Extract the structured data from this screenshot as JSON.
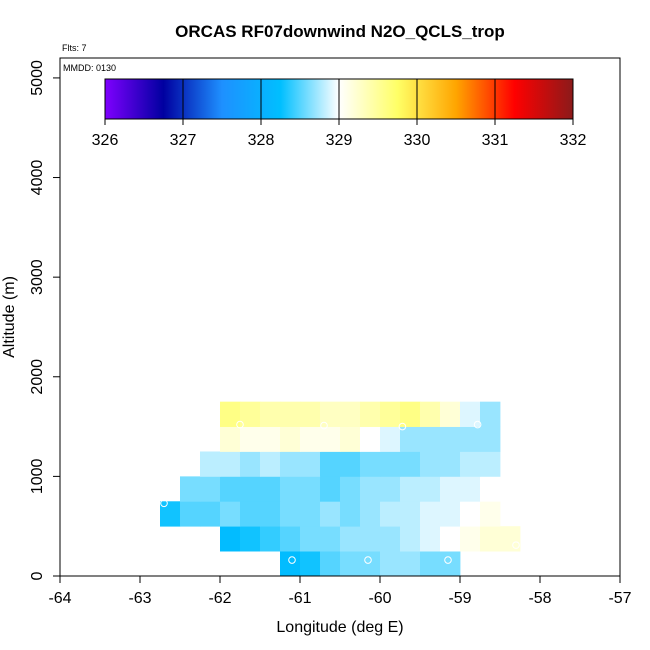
{
  "header": {
    "title": "ORCAS RF07downwind N2O_QCLS_trop",
    "flts": "Flts: 7",
    "mmdd": "MMDD: 0130"
  },
  "chart_data": {
    "type": "heatmap",
    "title": "ORCAS RF07downwind N2O_QCLS_trop",
    "xlabel": "Longitude (deg E)",
    "ylabel": "Altitude (m)",
    "xlim": [
      -64,
      -57
    ],
    "ylim": [
      0,
      5200
    ],
    "xticks": [
      -64,
      -63,
      -62,
      -61,
      -60,
      -59,
      -58,
      -57
    ],
    "yticks": [
      0,
      1000,
      2000,
      3000,
      4000,
      5000
    ],
    "grid": false,
    "colorbar": {
      "min": 326,
      "max": 332,
      "ticks": [
        326,
        327,
        328,
        329,
        330,
        331,
        332
      ],
      "placement": "top-left inside plot",
      "colors": [
        "#7f00ff",
        "#0000a0",
        "#1e90ff",
        "#00bfff",
        "#ffffff",
        "#ffff66",
        "#ffa500",
        "#ff0000",
        "#8b1a1a"
      ]
    },
    "cell_size": {
      "lon": 0.25,
      "alt": 250
    },
    "cells": [
      {
        "lon": -61.125,
        "alt": 125,
        "value": 328.2
      },
      {
        "lon": -60.875,
        "alt": 125,
        "value": 328.3
      },
      {
        "lon": -60.625,
        "alt": 125,
        "value": 328.5
      },
      {
        "lon": -60.375,
        "alt": 125,
        "value": 328.6
      },
      {
        "lon": -60.125,
        "alt": 125,
        "value": 328.6
      },
      {
        "lon": -59.875,
        "alt": 125,
        "value": 328.7
      },
      {
        "lon": -59.625,
        "alt": 125,
        "value": 328.7
      },
      {
        "lon": -59.375,
        "alt": 125,
        "value": 328.6
      },
      {
        "lon": -59.125,
        "alt": 125,
        "value": 328.6
      },
      {
        "lon": -61.875,
        "alt": 375,
        "value": 328.2
      },
      {
        "lon": -61.625,
        "alt": 375,
        "value": 328.3
      },
      {
        "lon": -61.375,
        "alt": 375,
        "value": 328.4
      },
      {
        "lon": -61.125,
        "alt": 375,
        "value": 328.5
      },
      {
        "lon": -60.875,
        "alt": 375,
        "value": 328.6
      },
      {
        "lon": -60.625,
        "alt": 375,
        "value": 328.6
      },
      {
        "lon": -60.375,
        "alt": 375,
        "value": 328.7
      },
      {
        "lon": -60.125,
        "alt": 375,
        "value": 328.7
      },
      {
        "lon": -59.875,
        "alt": 375,
        "value": 328.7
      },
      {
        "lon": -59.625,
        "alt": 375,
        "value": 328.8
      },
      {
        "lon": -59.375,
        "alt": 375,
        "value": 328.9
      },
      {
        "lon": -59.125,
        "alt": 375,
        "value": 329.0
      },
      {
        "lon": -58.875,
        "alt": 375,
        "value": 329.1
      },
      {
        "lon": -58.625,
        "alt": 375,
        "value": 329.2
      },
      {
        "lon": -58.375,
        "alt": 375,
        "value": 329.2
      },
      {
        "lon": -62.625,
        "alt": 625,
        "value": 328.3
      },
      {
        "lon": -62.375,
        "alt": 625,
        "value": 328.5
      },
      {
        "lon": -62.125,
        "alt": 625,
        "value": 328.5
      },
      {
        "lon": -61.875,
        "alt": 625,
        "value": 328.6
      },
      {
        "lon": -61.625,
        "alt": 625,
        "value": 328.5
      },
      {
        "lon": -61.375,
        "alt": 625,
        "value": 328.5
      },
      {
        "lon": -61.125,
        "alt": 625,
        "value": 328.6
      },
      {
        "lon": -60.875,
        "alt": 625,
        "value": 328.6
      },
      {
        "lon": -60.625,
        "alt": 625,
        "value": 328.7
      },
      {
        "lon": -60.375,
        "alt": 625,
        "value": 328.6
      },
      {
        "lon": -60.125,
        "alt": 625,
        "value": 328.7
      },
      {
        "lon": -59.875,
        "alt": 625,
        "value": 328.8
      },
      {
        "lon": -59.625,
        "alt": 625,
        "value": 328.8
      },
      {
        "lon": -59.375,
        "alt": 625,
        "value": 328.9
      },
      {
        "lon": -59.125,
        "alt": 625,
        "value": 328.9
      },
      {
        "lon": -58.875,
        "alt": 625,
        "value": 329.0
      },
      {
        "lon": -58.625,
        "alt": 625,
        "value": 329.1
      },
      {
        "lon": -62.375,
        "alt": 875,
        "value": 328.6
      },
      {
        "lon": -62.125,
        "alt": 875,
        "value": 328.6
      },
      {
        "lon": -61.875,
        "alt": 875,
        "value": 328.5
      },
      {
        "lon": -61.625,
        "alt": 875,
        "value": 328.5
      },
      {
        "lon": -61.375,
        "alt": 875,
        "value": 328.5
      },
      {
        "lon": -61.125,
        "alt": 875,
        "value": 328.6
      },
      {
        "lon": -60.875,
        "alt": 875,
        "value": 328.6
      },
      {
        "lon": -60.625,
        "alt": 875,
        "value": 328.5
      },
      {
        "lon": -60.375,
        "alt": 875,
        "value": 328.6
      },
      {
        "lon": -60.125,
        "alt": 875,
        "value": 328.7
      },
      {
        "lon": -59.875,
        "alt": 875,
        "value": 328.7
      },
      {
        "lon": -59.625,
        "alt": 875,
        "value": 328.8
      },
      {
        "lon": -59.375,
        "alt": 875,
        "value": 328.8
      },
      {
        "lon": -59.125,
        "alt": 875,
        "value": 328.9
      },
      {
        "lon": -58.875,
        "alt": 875,
        "value": 328.9
      },
      {
        "lon": -58.625,
        "alt": 875,
        "value": 329.0
      },
      {
        "lon": -62.125,
        "alt": 1125,
        "value": 328.8
      },
      {
        "lon": -61.875,
        "alt": 1125,
        "value": 328.8
      },
      {
        "lon": -61.625,
        "alt": 1125,
        "value": 328.7
      },
      {
        "lon": -61.375,
        "alt": 1125,
        "value": 328.8
      },
      {
        "lon": -61.125,
        "alt": 1125,
        "value": 328.7
      },
      {
        "lon": -60.875,
        "alt": 1125,
        "value": 328.7
      },
      {
        "lon": -60.625,
        "alt": 1125,
        "value": 328.5
      },
      {
        "lon": -60.375,
        "alt": 1125,
        "value": 328.5
      },
      {
        "lon": -60.125,
        "alt": 1125,
        "value": 328.6
      },
      {
        "lon": -59.875,
        "alt": 1125,
        "value": 328.6
      },
      {
        "lon": -59.625,
        "alt": 1125,
        "value": 328.6
      },
      {
        "lon": -59.375,
        "alt": 1125,
        "value": 328.7
      },
      {
        "lon": -59.125,
        "alt": 1125,
        "value": 328.7
      },
      {
        "lon": -58.875,
        "alt": 1125,
        "value": 328.8
      },
      {
        "lon": -58.625,
        "alt": 1125,
        "value": 328.8
      },
      {
        "lon": -61.875,
        "alt": 1375,
        "value": 329.2
      },
      {
        "lon": -61.625,
        "alt": 1375,
        "value": 329.1
      },
      {
        "lon": -61.375,
        "alt": 1375,
        "value": 329.1
      },
      {
        "lon": -61.125,
        "alt": 1375,
        "value": 329.2
      },
      {
        "lon": -60.875,
        "alt": 1375,
        "value": 329.1
      },
      {
        "lon": -60.625,
        "alt": 1375,
        "value": 329.1
      },
      {
        "lon": -60.375,
        "alt": 1375,
        "value": 329.2
      },
      {
        "lon": -60.125,
        "alt": 1375,
        "value": 329.0
      },
      {
        "lon": -59.875,
        "alt": 1375,
        "value": 328.9
      },
      {
        "lon": -59.625,
        "alt": 1375,
        "value": 328.7
      },
      {
        "lon": -59.375,
        "alt": 1375,
        "value": 328.7
      },
      {
        "lon": -59.125,
        "alt": 1375,
        "value": 328.7
      },
      {
        "lon": -58.875,
        "alt": 1375,
        "value": 328.7
      },
      {
        "lon": -58.625,
        "alt": 1375,
        "value": 328.7
      },
      {
        "lon": -61.875,
        "alt": 1625,
        "value": 329.6
      },
      {
        "lon": -61.625,
        "alt": 1625,
        "value": 329.5
      },
      {
        "lon": -61.375,
        "alt": 1625,
        "value": 329.4
      },
      {
        "lon": -61.125,
        "alt": 1625,
        "value": 329.4
      },
      {
        "lon": -60.875,
        "alt": 1625,
        "value": 329.4
      },
      {
        "lon": -60.625,
        "alt": 1625,
        "value": 329.3
      },
      {
        "lon": -60.375,
        "alt": 1625,
        "value": 329.3
      },
      {
        "lon": -60.125,
        "alt": 1625,
        "value": 329.4
      },
      {
        "lon": -59.875,
        "alt": 1625,
        "value": 329.5
      },
      {
        "lon": -59.625,
        "alt": 1625,
        "value": 329.6
      },
      {
        "lon": -59.375,
        "alt": 1625,
        "value": 329.4
      },
      {
        "lon": -59.125,
        "alt": 1625,
        "value": 329.2
      },
      {
        "lon": -58.875,
        "alt": 1625,
        "value": 328.9
      },
      {
        "lon": -58.625,
        "alt": 1625,
        "value": 328.7
      }
    ],
    "markers": [
      {
        "lon": -61.1,
        "alt": 160
      },
      {
        "lon": -60.15,
        "alt": 160
      },
      {
        "lon": -59.15,
        "alt": 160
      },
      {
        "lon": -62.7,
        "alt": 730
      },
      {
        "lon": -58.3,
        "alt": 310
      },
      {
        "lon": -61.75,
        "alt": 1520
      },
      {
        "lon": -60.7,
        "alt": 1510
      },
      {
        "lon": -59.72,
        "alt": 1500
      },
      {
        "lon": -58.78,
        "alt": 1520
      }
    ]
  }
}
